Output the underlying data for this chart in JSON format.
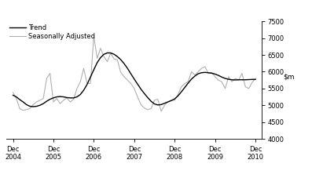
{
  "title": "",
  "ylim": [
    4000,
    7500
  ],
  "yticks": [
    4000,
    4500,
    5000,
    5500,
    6000,
    6500,
    7000,
    7500
  ],
  "xlim": [
    2004.75,
    2011.08
  ],
  "xtick_positions": [
    2004.917,
    2005.917,
    2006.917,
    2007.917,
    2008.917,
    2009.917,
    2010.917
  ],
  "xtick_labels": [
    "Dec\n2004",
    "Dec\n2005",
    "Dec\n2006",
    "Dec\n2007",
    "Dec\n2008",
    "Dec\n2009",
    "Dec\n2010"
  ],
  "legend_entries": [
    "Trend",
    "Seasonally Adjusted"
  ],
  "trend_color": "#000000",
  "seasonal_color": "#b0b0b0",
  "background_color": "#ffffff",
  "trend_linewidth": 1.0,
  "seasonal_linewidth": 0.8,
  "trend_data": {
    "t": [
      2004.917,
      2005.0,
      2005.083,
      2005.167,
      2005.25,
      2005.333,
      2005.417,
      2005.5,
      2005.583,
      2005.667,
      2005.75,
      2005.833,
      2005.917,
      2006.0,
      2006.083,
      2006.167,
      2006.25,
      2006.333,
      2006.417,
      2006.5,
      2006.583,
      2006.667,
      2006.75,
      2006.833,
      2006.917,
      2007.0,
      2007.083,
      2007.167,
      2007.25,
      2007.333,
      2007.417,
      2007.5,
      2007.583,
      2007.667,
      2007.75,
      2007.833,
      2007.917,
      2008.0,
      2008.083,
      2008.167,
      2008.25,
      2008.333,
      2008.417,
      2008.5,
      2008.583,
      2008.667,
      2008.75,
      2008.833,
      2008.917,
      2009.0,
      2009.083,
      2009.167,
      2009.25,
      2009.333,
      2009.417,
      2009.5,
      2009.583,
      2009.667,
      2009.75,
      2009.833,
      2009.917,
      2010.0,
      2010.083,
      2010.167,
      2010.25,
      2010.333,
      2010.417,
      2010.5,
      2010.583,
      2010.667,
      2010.75,
      2010.833,
      2010.917
    ],
    "v": [
      5300,
      5250,
      5170,
      5100,
      5020,
      4970,
      4960,
      4970,
      5000,
      5050,
      5120,
      5180,
      5220,
      5250,
      5260,
      5250,
      5230,
      5220,
      5220,
      5250,
      5320,
      5450,
      5620,
      5840,
      6060,
      6270,
      6420,
      6520,
      6560,
      6560,
      6520,
      6450,
      6360,
      6240,
      6100,
      5940,
      5780,
      5630,
      5480,
      5350,
      5230,
      5120,
      5040,
      5010,
      5020,
      5060,
      5100,
      5140,
      5190,
      5280,
      5400,
      5530,
      5660,
      5780,
      5870,
      5940,
      5970,
      5980,
      5970,
      5955,
      5930,
      5890,
      5840,
      5800,
      5775,
      5760,
      5755,
      5760,
      5760,
      5760,
      5765,
      5770,
      5770
    ]
  },
  "seasonal_data": {
    "t": [
      2004.917,
      2005.0,
      2005.083,
      2005.167,
      2005.25,
      2005.333,
      2005.417,
      2005.5,
      2005.583,
      2005.667,
      2005.75,
      2005.833,
      2005.917,
      2006.0,
      2006.083,
      2006.167,
      2006.25,
      2006.333,
      2006.417,
      2006.5,
      2006.583,
      2006.667,
      2006.75,
      2006.833,
      2006.917,
      2007.0,
      2007.083,
      2007.167,
      2007.25,
      2007.333,
      2007.417,
      2007.5,
      2007.583,
      2007.667,
      2007.75,
      2007.833,
      2007.917,
      2008.0,
      2008.083,
      2008.167,
      2008.25,
      2008.333,
      2008.417,
      2008.5,
      2008.583,
      2008.667,
      2008.75,
      2008.833,
      2008.917,
      2009.0,
      2009.083,
      2009.167,
      2009.25,
      2009.333,
      2009.417,
      2009.5,
      2009.583,
      2009.667,
      2009.75,
      2009.833,
      2009.917,
      2010.0,
      2010.083,
      2010.167,
      2010.25,
      2010.333,
      2010.417,
      2010.5,
      2010.583,
      2010.667,
      2010.75,
      2010.833,
      2010.917
    ],
    "v": [
      5380,
      5200,
      4900,
      4850,
      4870,
      4900,
      5020,
      5100,
      5150,
      5200,
      5800,
      5950,
      5100,
      5200,
      5050,
      5150,
      5220,
      5100,
      5180,
      5500,
      5700,
      6100,
      5650,
      5650,
      7050,
      6400,
      6700,
      6450,
      6300,
      6550,
      6380,
      6350,
      5980,
      5850,
      5750,
      5650,
      5500,
      5250,
      5020,
      4920,
      4870,
      4900,
      5150,
      5180,
      4820,
      5000,
      5100,
      5150,
      5150,
      5320,
      5550,
      5650,
      5700,
      6000,
      5900,
      6000,
      6100,
      6150,
      5950,
      5980,
      5850,
      5750,
      5700,
      5500,
      5850,
      5700,
      5800,
      5750,
      5950,
      5550,
      5500,
      5680,
      5800
    ]
  }
}
